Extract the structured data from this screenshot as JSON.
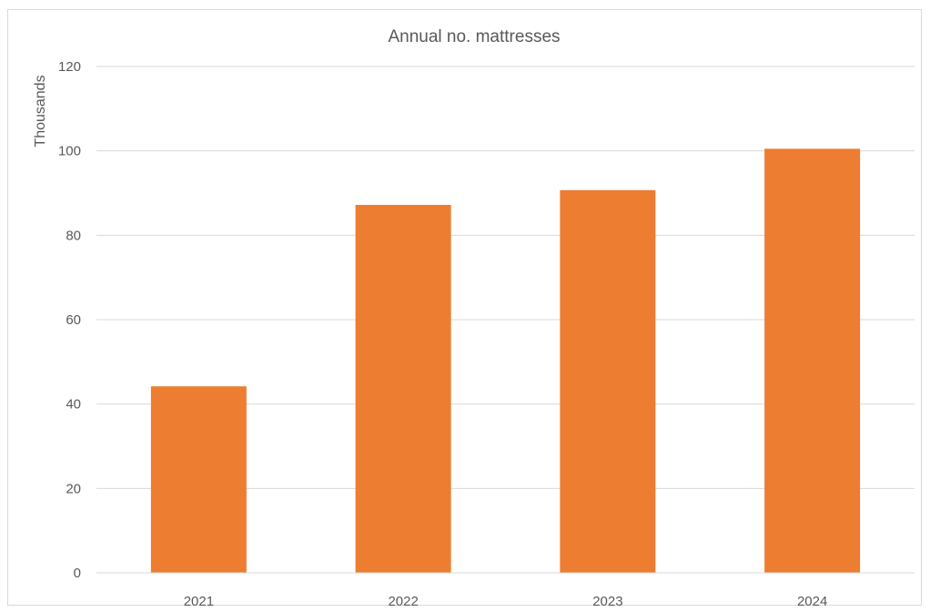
{
  "chart_data": {
    "type": "bar",
    "title": "Annual no. mattresses",
    "xlabel": "",
    "ylabel": "Thousands",
    "categories": [
      "2021",
      "2022",
      "2023",
      "2024"
    ],
    "values": [
      44.2,
      87.2,
      90.7,
      100.5
    ],
    "ylim": [
      0,
      120
    ],
    "yticks": [
      "0",
      "20",
      "40",
      "60",
      "80",
      "100",
      "120"
    ],
    "grid": true,
    "legend": "none",
    "bar_color": "#ED7D31",
    "grid_color": "#D9D9D9"
  }
}
